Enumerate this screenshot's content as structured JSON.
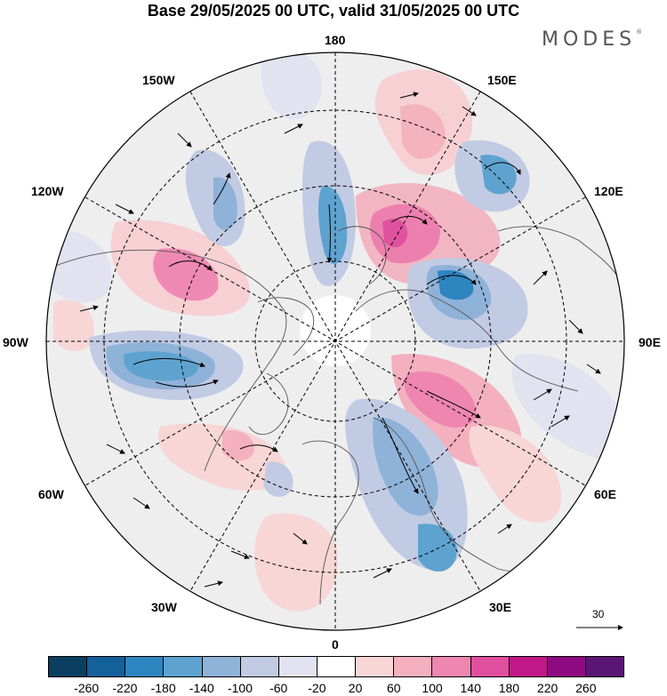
{
  "title": "Base 29/05/2025 00 UTC, valid 31/05/2025 00 UTC",
  "brand": {
    "name": "MODES",
    "mark": "®"
  },
  "map": {
    "projection": "north polar stereographic",
    "longitude_labels": {
      "top": "180",
      "bottom": "0",
      "left": "90W",
      "right": "90E",
      "upper_left_1": "150W",
      "upper_left_2": "120W",
      "lower_left_1": "60W",
      "lower_left_2": "30W",
      "upper_right_1": "150E",
      "upper_right_2": "120E",
      "lower_right_1": "60E",
      "lower_right_2": "30E"
    },
    "vector_key_label": "30"
  },
  "colorbar": {
    "colors": [
      "#0b3f62",
      "#14609a",
      "#2f85c0",
      "#5ea3d0",
      "#8fb2d8",
      "#c2cbe4",
      "#e2e2f0",
      "#ffffff",
      "#f8d6d6",
      "#f4b0be",
      "#ee86b0",
      "#e04e9e",
      "#c01888",
      "#8e0a80",
      "#5b1574"
    ],
    "labels": [
      "-260",
      "-220",
      "-180",
      "-140",
      "-100",
      "-60",
      "-20",
      "20",
      "60",
      "100",
      "140",
      "180",
      "220",
      "260"
    ]
  }
}
